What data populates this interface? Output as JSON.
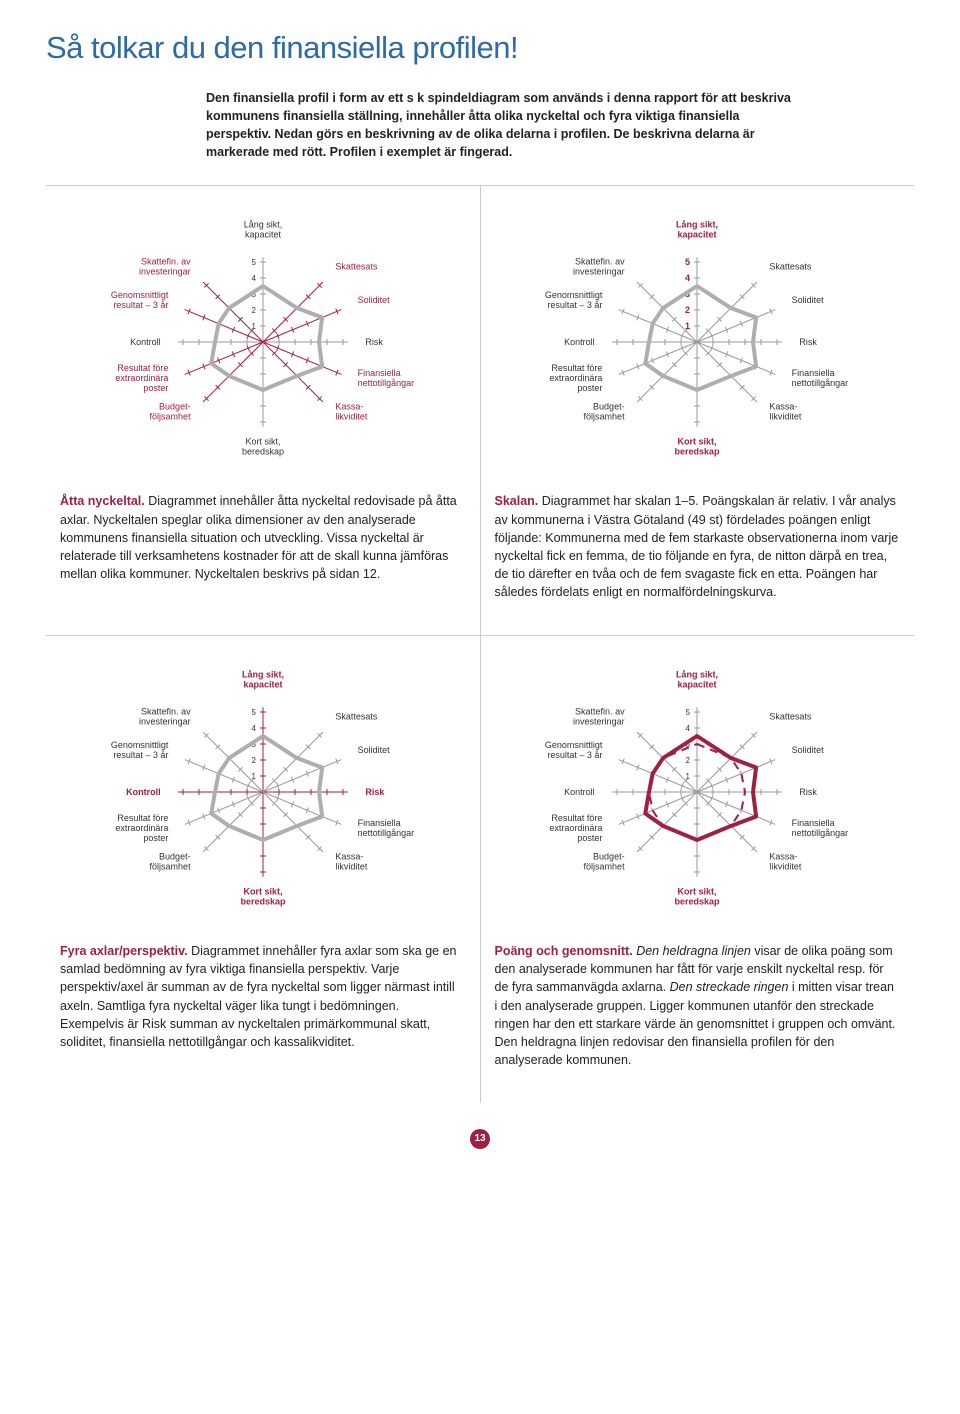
{
  "page": {
    "title": "Så tolkar du den finansiella profilen!",
    "intro": "Den finansiella profil i form av ett s k spindeldiagram som används i denna rapport för att beskriva kommunens finansiella ställning, innehåller åtta olika nyckeltal och fyra viktiga finansiella perspektiv. Nedan görs en beskrivning av de olika delarna i profilen. De beskrivna delarna är markerade med rött. Profilen i exemplet är fingerad.",
    "page_number": "13"
  },
  "colors": {
    "brand_blue": "#2e6aa8",
    "brand_red": "#a02040",
    "axis_gray": "#999999",
    "poly_gray": "#aeaeae",
    "text": "#222222"
  },
  "chart_common": {
    "scale_min": 1,
    "scale_max": 5,
    "tick_labels": [
      "1",
      "2",
      "3",
      "4",
      "5"
    ],
    "axes": [
      {
        "key": "lang_sikt",
        "label": "Lång sikt,\nkapacitet",
        "angle": 0
      },
      {
        "key": "skattesats",
        "label": "Skattesats",
        "angle": 45
      },
      {
        "key": "soliditet",
        "label": "Soliditet",
        "angle": 67.5
      },
      {
        "key": "risk",
        "label": "Risk",
        "angle": 90
      },
      {
        "key": "fin_netto",
        "label": "Finansiella\nnettotillgångar",
        "angle": 112.5
      },
      {
        "key": "kassa",
        "label": "Kassa-\nlikviditet",
        "angle": 135
      },
      {
        "key": "kort_sikt",
        "label": "Kort sikt,\nberedskap",
        "angle": 180
      },
      {
        "key": "budget",
        "label": "Budget-\nföljsamhet",
        "angle": 225
      },
      {
        "key": "res_extra",
        "label": "Resultat före\nextraordinära\nposter",
        "angle": 247.5
      },
      {
        "key": "kontroll",
        "label": "Kontroll",
        "angle": 270
      },
      {
        "key": "gen_res",
        "label": "Genomsnittligt\nresultat – 3 år",
        "angle": 292.5
      },
      {
        "key": "skattefin",
        "label": "Skattefin. av\ninvesteringar",
        "angle": 315
      }
    ],
    "polygon_values": {
      "lang_sikt": 3.5,
      "skattesats": 3,
      "soliditet": 4,
      "risk": 3.5,
      "fin_netto": 4,
      "kassa": 3,
      "kort_sikt": 3,
      "budget": 3,
      "res_extra": 3.5,
      "kontroll": 3,
      "gen_res": 3,
      "skattefin": 3
    },
    "baseline_value": 3,
    "polygon_stroke_width": 4,
    "axis_stroke_width": 1
  },
  "panels": [
    {
      "id": "atta",
      "highlight_labels_red": true,
      "highlight_axes_red": false,
      "polygon_color": "gray",
      "show_baseline": false,
      "heading": "Åtta nyckeltal.",
      "text": " Diagrammet innehåller åtta nyckeltal redovisade på åtta axlar. Nyckeltalen speglar olika dimensioner av den analyserade kommunens finansiella situation och utveckling. Vissa nyckeltal är relaterade till verksamhetens kostnader för att de skall kunna jämföras mellan olika kommuner. Nyckeltalen beskrivs på sidan 12."
    },
    {
      "id": "skalan",
      "highlight_labels_red": false,
      "highlight_axes_red": false,
      "highlight_scale_red": true,
      "polygon_color": "gray",
      "show_baseline": false,
      "heading": "Skalan.",
      "text": " Diagrammet har skalan 1–5. Poängskalan är relativ. I vår analys av kommunerna i Västra Götaland (49 st) fördelades poängen enligt följande: Kommunerna med de fem starkaste observationerna inom varje nyckeltal fick en femma, de tio följande en fyra, de nitton därpå en trea, de tio därefter en tvåa och de fem svagaste fick en etta. Poängen har således fördelats enligt en normalfördelningskurva."
    },
    {
      "id": "fyra",
      "highlight_labels_red": false,
      "highlight_four_red": true,
      "polygon_color": "gray",
      "show_baseline": false,
      "heading": "Fyra axlar/perspektiv.",
      "text": " Diagrammet innehåller fyra axlar som ska ge en samlad bedömning av fyra viktiga finansiella perspektiv. Varje perspektiv/axel är summan av de fyra nyckeltal som ligger närmast intill axeln. Samtliga fyra nyckeltal väger lika tungt i bedömningen. Exempelvis är Risk summan av nyckeltalen primärkommunal skatt, soliditet, finansiella nettotillgångar och kassalikviditet."
    },
    {
      "id": "poang",
      "highlight_labels_red": false,
      "highlight_axes_red": false,
      "polygon_color": "red",
      "show_baseline": true,
      "heading": "Poäng och genomsnitt.",
      "text_html": " <i>Den heldragna linjen</i> visar de olika poäng som den analyserade kommunen har fått för varje enskilt nyckeltal resp. för de fyra sammanvägda axlarna. <i>Den streckade ringen</i> i mitten visar trean i den analyserade gruppen. Ligger kommunen utanför den streckade ringen har den ett starkare värde än genomsnittet i gruppen och omvänt. Den heldragna linjen redovisar den finansiella profilen för den analyserade kommunen."
    }
  ]
}
